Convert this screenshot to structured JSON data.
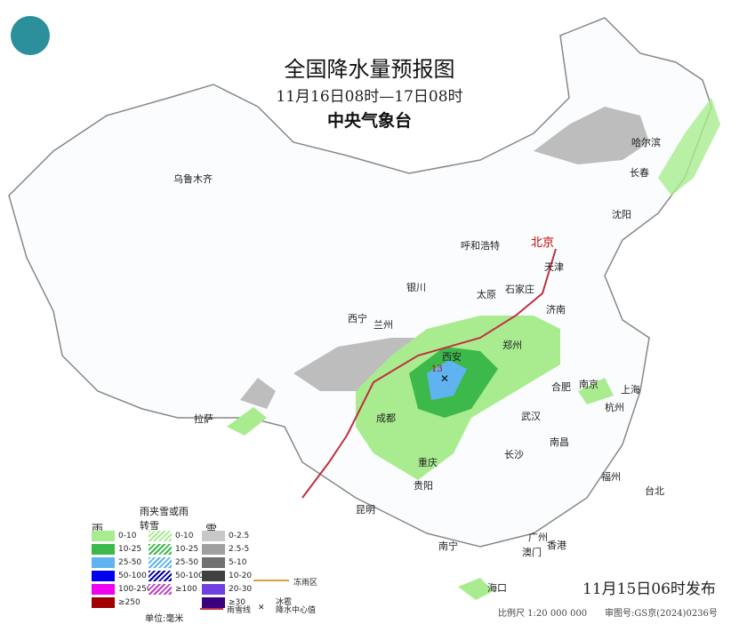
{
  "header": {
    "title": "全国降水量预报图",
    "period": "11月16日08时—17日08时",
    "agency": "中央气象台"
  },
  "cities": [
    {
      "name": "乌鲁木齐"
    },
    {
      "name": "哈尔滨"
    },
    {
      "name": "长春"
    },
    {
      "name": "沈阳"
    },
    {
      "name": "北京",
      "capital": true
    },
    {
      "name": "天津"
    },
    {
      "name": "呼和浩特"
    },
    {
      "name": "石家庄"
    },
    {
      "name": "太原"
    },
    {
      "name": "银川"
    },
    {
      "name": "济南"
    },
    {
      "name": "西宁"
    },
    {
      "name": "兰州"
    },
    {
      "name": "西安"
    },
    {
      "name": "郑州"
    },
    {
      "name": "合肥"
    },
    {
      "name": "南京"
    },
    {
      "name": "上海"
    },
    {
      "name": "杭州"
    },
    {
      "name": "拉萨"
    },
    {
      "name": "成都"
    },
    {
      "name": "重庆"
    },
    {
      "name": "武汉"
    },
    {
      "name": "南昌"
    },
    {
      "name": "长沙"
    },
    {
      "name": "贵阳"
    },
    {
      "name": "昆明"
    },
    {
      "name": "福州"
    },
    {
      "name": "台北"
    },
    {
      "name": "南宁"
    },
    {
      "name": "广州"
    },
    {
      "name": "澳门"
    },
    {
      "name": "香港"
    },
    {
      "name": "海口"
    }
  ],
  "center_value": "13",
  "legend": {
    "rain_title": "雨",
    "rain": [
      {
        "label": "0-10",
        "color": "#a8ec8f"
      },
      {
        "label": "10-25",
        "color": "#3cb94a"
      },
      {
        "label": "25-50",
        "color": "#5fb3f0"
      },
      {
        "label": "50-100",
        "color": "#0000f0"
      },
      {
        "label": "100-250",
        "color": "#f000f0"
      },
      {
        "label": "≥250",
        "color": "#a00000"
      }
    ],
    "mix_title": "雨夹雪或雨转雪",
    "mix": [
      {
        "label": "0-10",
        "color": "#a8ec8f"
      },
      {
        "label": "10-25",
        "color": "#3cb94a"
      },
      {
        "label": "25-50",
        "color": "#5fb3f0"
      },
      {
        "label": "50-100",
        "color": "#0000a0"
      },
      {
        "label": "≥100",
        "color": "#c040c0"
      }
    ],
    "snow_title": "雪",
    "snow": [
      {
        "label": "0-2.5",
        "color": "#c8c8c8"
      },
      {
        "label": "2.5-5",
        "color": "#a0a0a0"
      },
      {
        "label": "5-10",
        "color": "#707070"
      },
      {
        "label": "10-20",
        "color": "#404040"
      },
      {
        "label": "20-30",
        "color": "#7040e0"
      },
      {
        "label": "≥30",
        "color": "#3a0080"
      }
    ],
    "unit": "单位:毫米",
    "line_freezing": "冻雨区",
    "hail": "冰雹",
    "line_rain_snow": "雨雪线",
    "center_mark": "降水中心值"
  },
  "footer": {
    "issued": "11月15日06时发布",
    "scale": "比例尺 1:20 000 000",
    "review": "审图号:GS京(2024)0236号"
  }
}
